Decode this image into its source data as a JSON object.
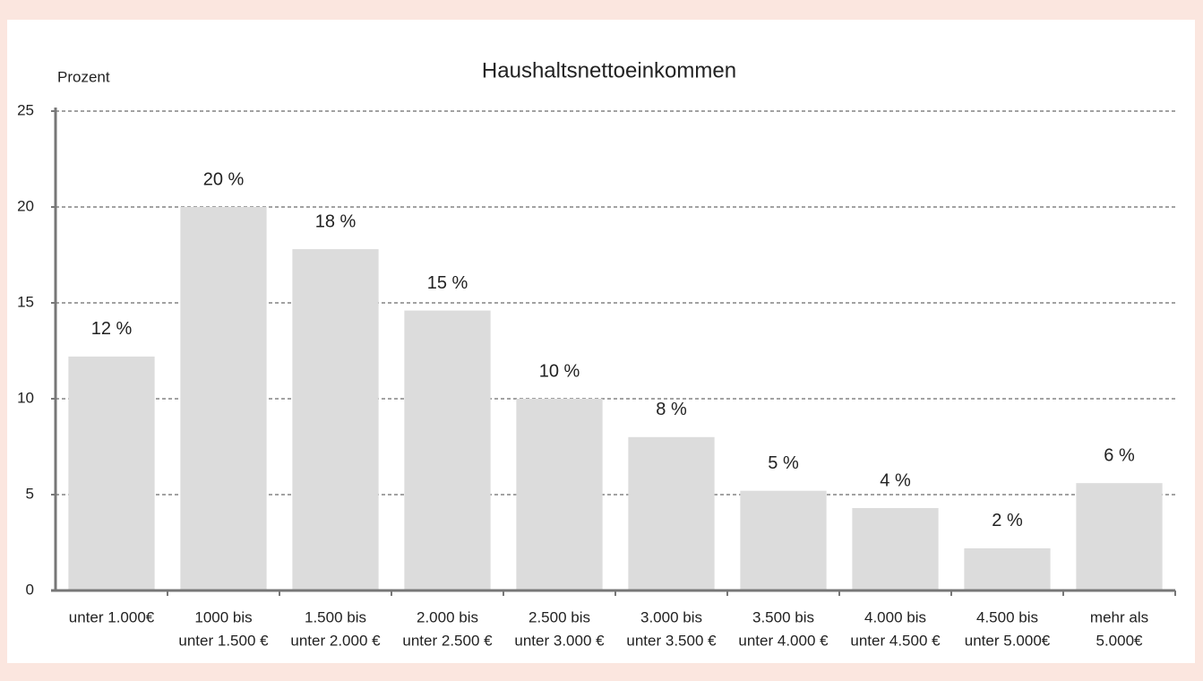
{
  "chart_data": {
    "type": "bar",
    "title": "Haushaltsnettoeinkommen",
    "y_label": "Prozent",
    "categories": [
      [
        "unter 1.000€"
      ],
      [
        "1000 bis",
        "unter 1.500 €"
      ],
      [
        "1.500 bis",
        "unter 2.000 €"
      ],
      [
        "2.000 bis",
        "unter 2.500 €"
      ],
      [
        "2.500 bis",
        "unter 3.000 €"
      ],
      [
        "3.000 bis",
        "unter 3.500 €"
      ],
      [
        "3.500 bis",
        "unter 4.000 €"
      ],
      [
        "4.000 bis",
        "unter 4.500 €"
      ],
      [
        "4.500 bis",
        "unter 5.000€"
      ],
      [
        "mehr als",
        "5.000€"
      ]
    ],
    "values": [
      12.2,
      20,
      17.8,
      14.6,
      10,
      8,
      5.2,
      4.3,
      2.2,
      5.6
    ],
    "value_labels": [
      "12 %",
      "20 %",
      "18 %",
      "15 %",
      "10 %",
      "8 %",
      "5 %",
      "4 %",
      "2 %",
      "6 %"
    ],
    "color": "#dcdcdc",
    "ylim": [
      0,
      25
    ],
    "yticks": [
      0,
      5,
      10,
      15,
      20,
      25
    ],
    "grid": true
  }
}
